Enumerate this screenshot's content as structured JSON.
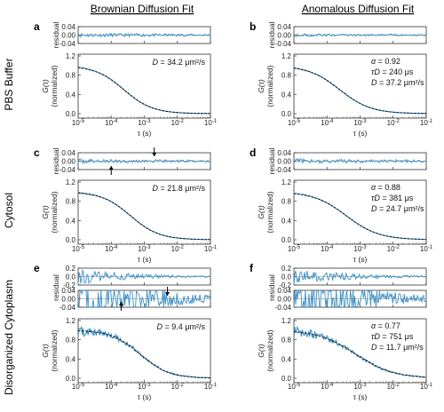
{
  "column_titles": [
    "Brownian Diffusion Fit",
    "Anomalous Diffusion Fit"
  ],
  "row_labels": [
    "PBS Buffer",
    "Cytosol",
    "Disorganized Cytoplasm"
  ],
  "colors": {
    "data": "#3b8fc4",
    "fit": "#111111",
    "zero_line": "#aaaaaa",
    "frame": "#333333"
  },
  "chart_data": [
    {
      "panel": "a",
      "type": "line",
      "model": "Brownian",
      "xlabel": "τ (s)",
      "ylabel_main": "G(τ) (normalized)",
      "ylabel_residual": "residual",
      "x_scale": "log",
      "xlim": [
        1e-05,
        0.1
      ],
      "x_ticks": [
        "-5",
        "-4",
        "-3",
        "-2",
        "-1"
      ],
      "ylim_main": [
        0,
        1.2
      ],
      "y_ticks_main": [
        "0.0",
        "0.4",
        "0.8",
        "1.2"
      ],
      "ylim_residual": [
        -0.04,
        0.04
      ],
      "y_ticks_residual": [
        "0.04",
        "0.00",
        "-0.04"
      ],
      "annotation": {
        "symbol": "D",
        "text": " = 34.2 μm²/s"
      },
      "fit": {
        "tau_D_us": 240,
        "alpha": 1.0
      },
      "residual_amplitude": 0.006,
      "noise_amplitude": 0.008
    },
    {
      "panel": "b",
      "type": "line",
      "model": "Anomalous",
      "xlabel": "τ (s)",
      "ylabel_main": "G(τ) (normalized)",
      "ylabel_residual": "residual",
      "x_scale": "log",
      "xlim": [
        1e-05,
        0.1
      ],
      "x_ticks": [
        "-5",
        "-4",
        "-3",
        "-2",
        "-1"
      ],
      "ylim_main": [
        0,
        1.2
      ],
      "y_ticks_main": [
        "0.0",
        "0.4",
        "0.8",
        "1.2"
      ],
      "ylim_residual": [
        -0.04,
        0.04
      ],
      "y_ticks_residual": [
        "0.04",
        "0.00",
        "-0.04"
      ],
      "annotation_lines": [
        {
          "symbol": "α",
          "text": " = 0.92"
        },
        {
          "symbol": "τD",
          "text": " = 240 μs"
        },
        {
          "symbol": "D",
          "text": " = 37.2 μm²/s"
        }
      ],
      "fit": {
        "tau_D_us": 240,
        "alpha": 0.92
      },
      "residual_amplitude": 0.004,
      "noise_amplitude": 0.008
    },
    {
      "panel": "c",
      "type": "line",
      "model": "Brownian",
      "xlabel": "τ (s)",
      "ylabel_main": "G(τ) (normalized)",
      "ylabel_residual": "residual",
      "x_scale": "log",
      "xlim": [
        1e-05,
        0.1
      ],
      "x_ticks": [
        "-5",
        "-4",
        "-3",
        "-2",
        "-1"
      ],
      "ylim_main": [
        0,
        1.2
      ],
      "y_ticks_main": [
        "0.0",
        "0.4",
        "0.8",
        "1.2"
      ],
      "ylim_residual": [
        -0.04,
        0.04
      ],
      "y_ticks_residual": [
        "0.04",
        "0.00",
        "-0.04"
      ],
      "annotation": {
        "symbol": "D",
        "text": " = 21.8 μm²/s"
      },
      "fit": {
        "tau_D_us": 381,
        "alpha": 1.0
      },
      "residual_amplitude": 0.006,
      "noise_amplitude": 0.01,
      "arrows": [
        {
          "x_log": -4.0,
          "direction": "up"
        },
        {
          "x_log": -2.7,
          "direction": "down"
        }
      ]
    },
    {
      "panel": "d",
      "type": "line",
      "model": "Anomalous",
      "xlabel": "τ (s)",
      "ylabel_main": "G(τ) (normalized)",
      "ylabel_residual": "residual",
      "x_scale": "log",
      "xlim": [
        1e-05,
        0.1
      ],
      "x_ticks": [
        "-5",
        "-4",
        "-3",
        "-2",
        "-1"
      ],
      "ylim_main": [
        0,
        1.2
      ],
      "y_ticks_main": [
        "0.0",
        "0.4",
        "0.8",
        "1.2"
      ],
      "ylim_residual": [
        -0.04,
        0.04
      ],
      "y_ticks_residual": [
        "0.04",
        "0.00",
        "-0.04"
      ],
      "annotation_lines": [
        {
          "symbol": "α",
          "text": " = 0.88"
        },
        {
          "symbol": "τD",
          "text": " = 381 μs"
        },
        {
          "symbol": "D",
          "text": " = 24.7 μm²/s"
        }
      ],
      "fit": {
        "tau_D_us": 381,
        "alpha": 0.88
      },
      "residual_amplitude": 0.007,
      "noise_amplitude": 0.01
    },
    {
      "panel": "e",
      "type": "line",
      "model": "Brownian",
      "xlabel": "τ (s)",
      "ylabel_main": "G(τ) (normalized)",
      "ylabel_residual": "residual",
      "x_scale": "log",
      "xlim": [
        1e-05,
        0.1
      ],
      "x_ticks": [
        "-5",
        "-4",
        "-3",
        "-2",
        "-1"
      ],
      "ylim_main": [
        0,
        1.2
      ],
      "y_ticks_main": [
        "0.0",
        "0.4",
        "0.8",
        "1.2"
      ],
      "ylim_residual_top": [
        -0.2,
        0.2
      ],
      "y_ticks_residual_top": [
        "0.2",
        "0.0",
        "-0.2"
      ],
      "ylim_residual": [
        -0.04,
        0.04
      ],
      "y_ticks_residual": [
        "0.04",
        "0.00",
        "-0.04"
      ],
      "annotation": {
        "symbol": "D",
        "text": " = 9.4 μm²/s"
      },
      "fit": {
        "tau_D_us": 751,
        "alpha": 1.0
      },
      "residual_amplitude": 0.015,
      "noise_amplitude": 0.12,
      "arrows": [
        {
          "x_log": -3.7,
          "direction": "up"
        },
        {
          "x_log": -2.3,
          "direction": "down"
        }
      ]
    },
    {
      "panel": "f",
      "type": "line",
      "model": "Anomalous",
      "xlabel": "τ (s)",
      "ylabel_main": "G(τ) (normalized)",
      "ylabel_residual": "residual",
      "x_scale": "log",
      "xlim": [
        1e-05,
        0.1
      ],
      "x_ticks": [
        "-5",
        "-4",
        "-3",
        "-2",
        "-1"
      ],
      "ylim_main": [
        0,
        1.2
      ],
      "y_ticks_main": [
        "0.0",
        "0.4",
        "0.8",
        "1.2"
      ],
      "ylim_residual_top": [
        -0.2,
        0.2
      ],
      "y_ticks_residual_top": [
        "0.2",
        "0.0",
        "-0.2"
      ],
      "ylim_residual": [
        -0.04,
        0.04
      ],
      "y_ticks_residual": [
        "0.04",
        "0.00",
        "-0.04"
      ],
      "annotation_lines": [
        {
          "symbol": "α",
          "text": " = 0.77"
        },
        {
          "symbol": "τD",
          "text": " = 751 μs"
        },
        {
          "symbol": "D",
          "text": " = 11.7 μm²/s"
        }
      ],
      "fit": {
        "tau_D_us": 751,
        "alpha": 0.77
      },
      "residual_amplitude": 0.005,
      "noise_amplitude": 0.12
    }
  ]
}
